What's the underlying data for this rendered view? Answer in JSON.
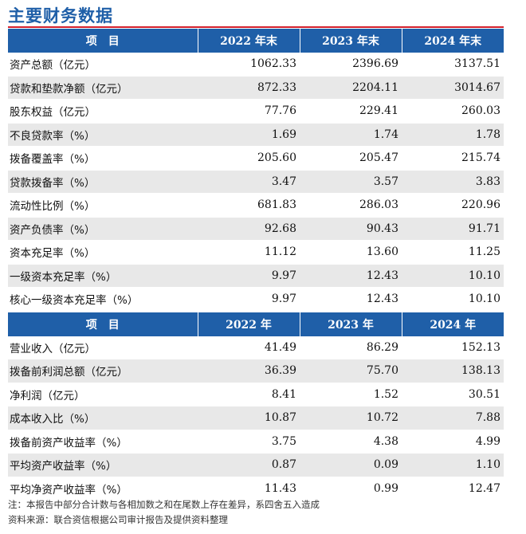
{
  "title": "主要财务数据",
  "section1": {
    "header": [
      "项　目",
      "2022 年末",
      "2023 年末",
      "2024 年末"
    ],
    "rows": [
      {
        "label": "资产总额（亿元）",
        "values": [
          "1062.33",
          "2396.69",
          "3137.51"
        ]
      },
      {
        "label": "贷款和垫款净额（亿元）",
        "values": [
          "872.33",
          "2204.11",
          "3014.67"
        ]
      },
      {
        "label": "股东权益（亿元）",
        "values": [
          "77.76",
          "229.41",
          "260.03"
        ]
      },
      {
        "label": "不良贷款率（%）",
        "values": [
          "1.69",
          "1.74",
          "1.78"
        ]
      },
      {
        "label": "拨备覆盖率（%）",
        "values": [
          "205.60",
          "205.47",
          "215.74"
        ]
      },
      {
        "label": "贷款拨备率（%）",
        "values": [
          "3.47",
          "3.57",
          "3.83"
        ]
      },
      {
        "label": "流动性比例（%）",
        "values": [
          "681.83",
          "286.03",
          "220.96"
        ]
      },
      {
        "label": "资产负债率（%）",
        "values": [
          "92.68",
          "90.43",
          "91.71"
        ]
      },
      {
        "label": "资本充足率（%）",
        "values": [
          "11.12",
          "13.60",
          "11.25"
        ]
      },
      {
        "label": "一级资本充足率（%）",
        "values": [
          "9.97",
          "12.43",
          "10.10"
        ]
      },
      {
        "label": "核心一级资本充足率（%）",
        "values": [
          "9.97",
          "12.43",
          "10.10"
        ]
      }
    ]
  },
  "section2": {
    "header": [
      "项　目",
      "2022 年",
      "2023 年",
      "2024 年"
    ],
    "rows": [
      {
        "label": "营业收入（亿元）",
        "values": [
          "41.49",
          "86.29",
          "152.13"
        ]
      },
      {
        "label": "拨备前利润总额（亿元）",
        "values": [
          "36.39",
          "75.70",
          "138.13"
        ]
      },
      {
        "label": "净利润（亿元）",
        "values": [
          "8.41",
          "1.52",
          "30.51"
        ]
      },
      {
        "label": "成本收入比（%）",
        "values": [
          "10.87",
          "10.72",
          "7.88"
        ]
      },
      {
        "label": "拨备前资产收益率（%）",
        "values": [
          "3.75",
          "4.38",
          "4.99"
        ]
      },
      {
        "label": "平均资产收益率（%）",
        "values": [
          "0.87",
          "0.09",
          "1.10"
        ]
      },
      {
        "label": "平均净资产收益率（%）",
        "values": [
          "11.43",
          "0.99",
          "12.47"
        ]
      }
    ]
  },
  "notes": {
    "note": "注：本报告中部分合计数与各相加数之和在尾数上存在差异，系四舍五入造成",
    "source": "资料来源：联合资信根据公司审计报告及提供资料整理"
  }
}
